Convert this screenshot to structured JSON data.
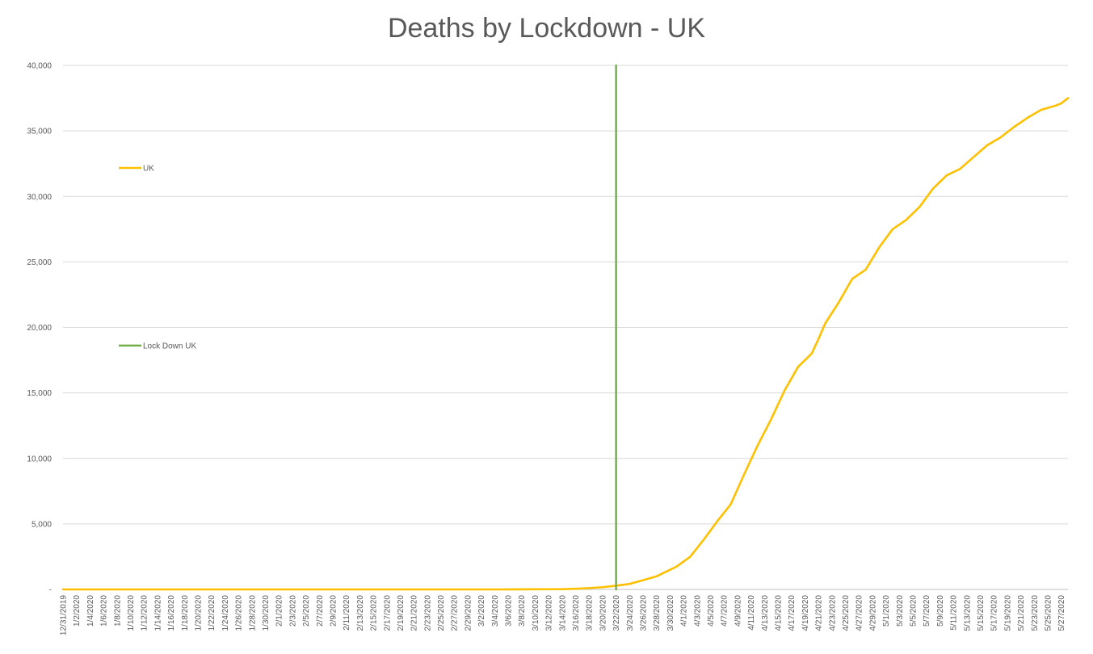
{
  "chart_data": {
    "type": "line",
    "title": "Deaths by Lockdown - UK",
    "xlabel": "",
    "ylabel": "",
    "ylim": [
      0,
      40000
    ],
    "y_ticks": [
      "-",
      "5,000",
      "10,000",
      "15,000",
      "20,000",
      "25,000",
      "30,000",
      "35,000",
      "40,000"
    ],
    "x_range": [
      "2019-12-31",
      "2020-05-28"
    ],
    "x_tick_labels": [
      "12/31/2019",
      "1/2/2020",
      "1/4/2020",
      "1/6/2020",
      "1/8/2020",
      "1/10/2020",
      "1/12/2020",
      "1/14/2020",
      "1/16/2020",
      "1/18/2020",
      "1/20/2020",
      "1/22/2020",
      "1/24/2020",
      "1/26/2020",
      "1/28/2020",
      "1/30/2020",
      "2/1/2020",
      "2/3/2020",
      "2/5/2020",
      "2/7/2020",
      "2/9/2020",
      "2/11/2020",
      "2/13/2020",
      "2/15/2020",
      "2/17/2020",
      "2/19/2020",
      "2/21/2020",
      "2/23/2020",
      "2/25/2020",
      "2/27/2020",
      "2/29/2020",
      "3/2/2020",
      "3/4/2020",
      "3/6/2020",
      "3/8/2020",
      "3/10/2020",
      "3/12/2020",
      "3/14/2020",
      "3/16/2020",
      "3/18/2020",
      "3/20/2020",
      "3/22/2020",
      "3/24/2020",
      "3/26/2020",
      "3/28/2020",
      "3/30/2020",
      "4/1/2020",
      "4/3/2020",
      "4/5/2020",
      "4/7/2020",
      "4/9/2020",
      "4/11/2020",
      "4/13/2020",
      "4/15/2020",
      "4/17/2020",
      "4/19/2020",
      "4/21/2020",
      "4/23/2020",
      "4/25/2020",
      "4/27/2020",
      "4/29/2020",
      "5/1/2020",
      "5/3/2020",
      "5/5/2020",
      "5/7/2020",
      "5/9/2020",
      "5/11/2020",
      "5/13/2020",
      "5/15/2020",
      "5/17/2020",
      "5/19/2020",
      "5/21/2020",
      "5/23/2020",
      "5/25/2020",
      "5/27/2020"
    ],
    "grid": true,
    "legend_position": "left",
    "series": [
      {
        "name": "UK",
        "color": "#FFC000",
        "points": [
          {
            "x": "2019-12-31",
            "y": 0
          },
          {
            "x": "2020-03-05",
            "y": 0
          },
          {
            "x": "2020-03-14",
            "y": 20
          },
          {
            "x": "2020-03-16",
            "y": 50
          },
          {
            "x": "2020-03-18",
            "y": 100
          },
          {
            "x": "2020-03-20",
            "y": 170
          },
          {
            "x": "2020-03-22",
            "y": 280
          },
          {
            "x": "2020-03-24",
            "y": 420
          },
          {
            "x": "2020-03-26",
            "y": 700
          },
          {
            "x": "2020-03-28",
            "y": 1000
          },
          {
            "x": "2020-03-30",
            "y": 1500
          },
          {
            "x": "2020-03-31",
            "y": 1750
          },
          {
            "x": "2020-04-02",
            "y": 2500
          },
          {
            "x": "2020-04-04",
            "y": 3800
          },
          {
            "x": "2020-04-06",
            "y": 5200
          },
          {
            "x": "2020-04-08",
            "y": 6500
          },
          {
            "x": "2020-04-10",
            "y": 8800
          },
          {
            "x": "2020-04-12",
            "y": 11000
          },
          {
            "x": "2020-04-14",
            "y": 13000
          },
          {
            "x": "2020-04-16",
            "y": 15200
          },
          {
            "x": "2020-04-18",
            "y": 17000
          },
          {
            "x": "2020-04-20",
            "y": 18000
          },
          {
            "x": "2020-04-21",
            "y": 19100
          },
          {
            "x": "2020-04-22",
            "y": 20300
          },
          {
            "x": "2020-04-24",
            "y": 21900
          },
          {
            "x": "2020-04-26",
            "y": 23700
          },
          {
            "x": "2020-04-28",
            "y": 24400
          },
          {
            "x": "2020-04-30",
            "y": 26100
          },
          {
            "x": "2020-05-02",
            "y": 27500
          },
          {
            "x": "2020-05-04",
            "y": 28200
          },
          {
            "x": "2020-05-06",
            "y": 29200
          },
          {
            "x": "2020-05-08",
            "y": 30600
          },
          {
            "x": "2020-05-10",
            "y": 31600
          },
          {
            "x": "2020-05-12",
            "y": 32100
          },
          {
            "x": "2020-05-14",
            "y": 33000
          },
          {
            "x": "2020-05-16",
            "y": 33900
          },
          {
            "x": "2020-05-18",
            "y": 34500
          },
          {
            "x": "2020-05-20",
            "y": 35300
          },
          {
            "x": "2020-05-22",
            "y": 36000
          },
          {
            "x": "2020-05-24",
            "y": 36600
          },
          {
            "x": "2020-05-26",
            "y": 36900
          },
          {
            "x": "2020-05-27",
            "y": 37100
          },
          {
            "x": "2020-05-28",
            "y": 37500
          }
        ]
      },
      {
        "name": "Lock Down UK",
        "color": "#70AD47",
        "points": [
          {
            "x": "2020-03-22",
            "y": 0
          },
          {
            "x": "2020-03-22",
            "y": 40000
          }
        ]
      }
    ]
  }
}
